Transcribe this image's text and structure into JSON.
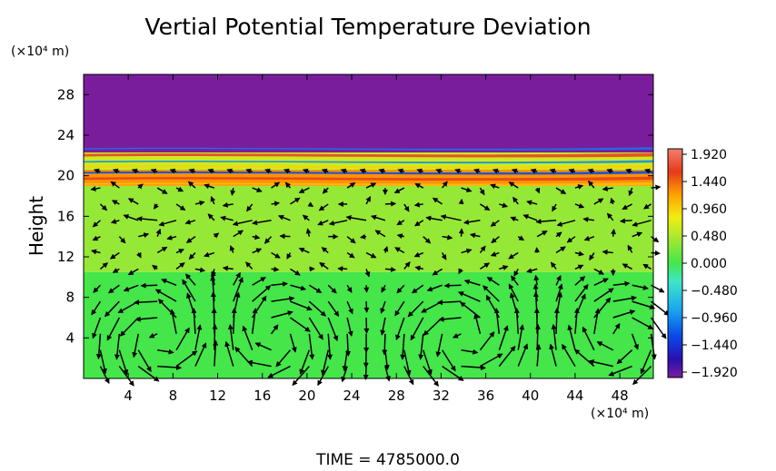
{
  "chart_data": {
    "type": "heatmap",
    "title": "Vertial Potential Temperature Deviation",
    "xlabel": "",
    "ylabel": "Height",
    "x_unit": "(×10⁴ m)",
    "y_unit": "(×10⁴ m)",
    "xlim": [
      0,
      51
    ],
    "ylim": [
      0,
      30
    ],
    "xticks": [
      "4",
      "8",
      "12",
      "16",
      "20",
      "24",
      "28",
      "32",
      "36",
      "40",
      "44",
      "48"
    ],
    "yticks": [
      "4",
      "8",
      "12",
      "16",
      "20",
      "24",
      "28"
    ],
    "colorbar": {
      "ticks": [
        "1.920",
        "1.440",
        "0.960",
        "0.480",
        "0.000",
        "−0.480",
        "−0.960",
        "−1.440",
        "−1.920"
      ],
      "range": [
        -1.92,
        1.92
      ],
      "stops": [
        "#7a1d9c",
        "#2a0fb0",
        "#0a48e8",
        "#1aa8f0",
        "#3ee6c8",
        "#44e64a",
        "#9ee834",
        "#f0ee10",
        "#ffa000",
        "#e63a1a",
        "#f0806e"
      ]
    },
    "layers": [
      {
        "from": 0,
        "to": 10.5,
        "value": 0.0
      },
      {
        "from": 10.5,
        "to": 19.0,
        "value": 0.35
      },
      {
        "from": 19.0,
        "to": 20.6,
        "value": 1.2
      },
      {
        "from": 20.6,
        "to": 22.3,
        "value": 0.6
      },
      {
        "from": 22.3,
        "to": 30,
        "value": -1.92
      }
    ],
    "vortex_centers_x": [
      7,
      17,
      34,
      48
    ],
    "time_label": "TIME  =  4785000.0"
  }
}
